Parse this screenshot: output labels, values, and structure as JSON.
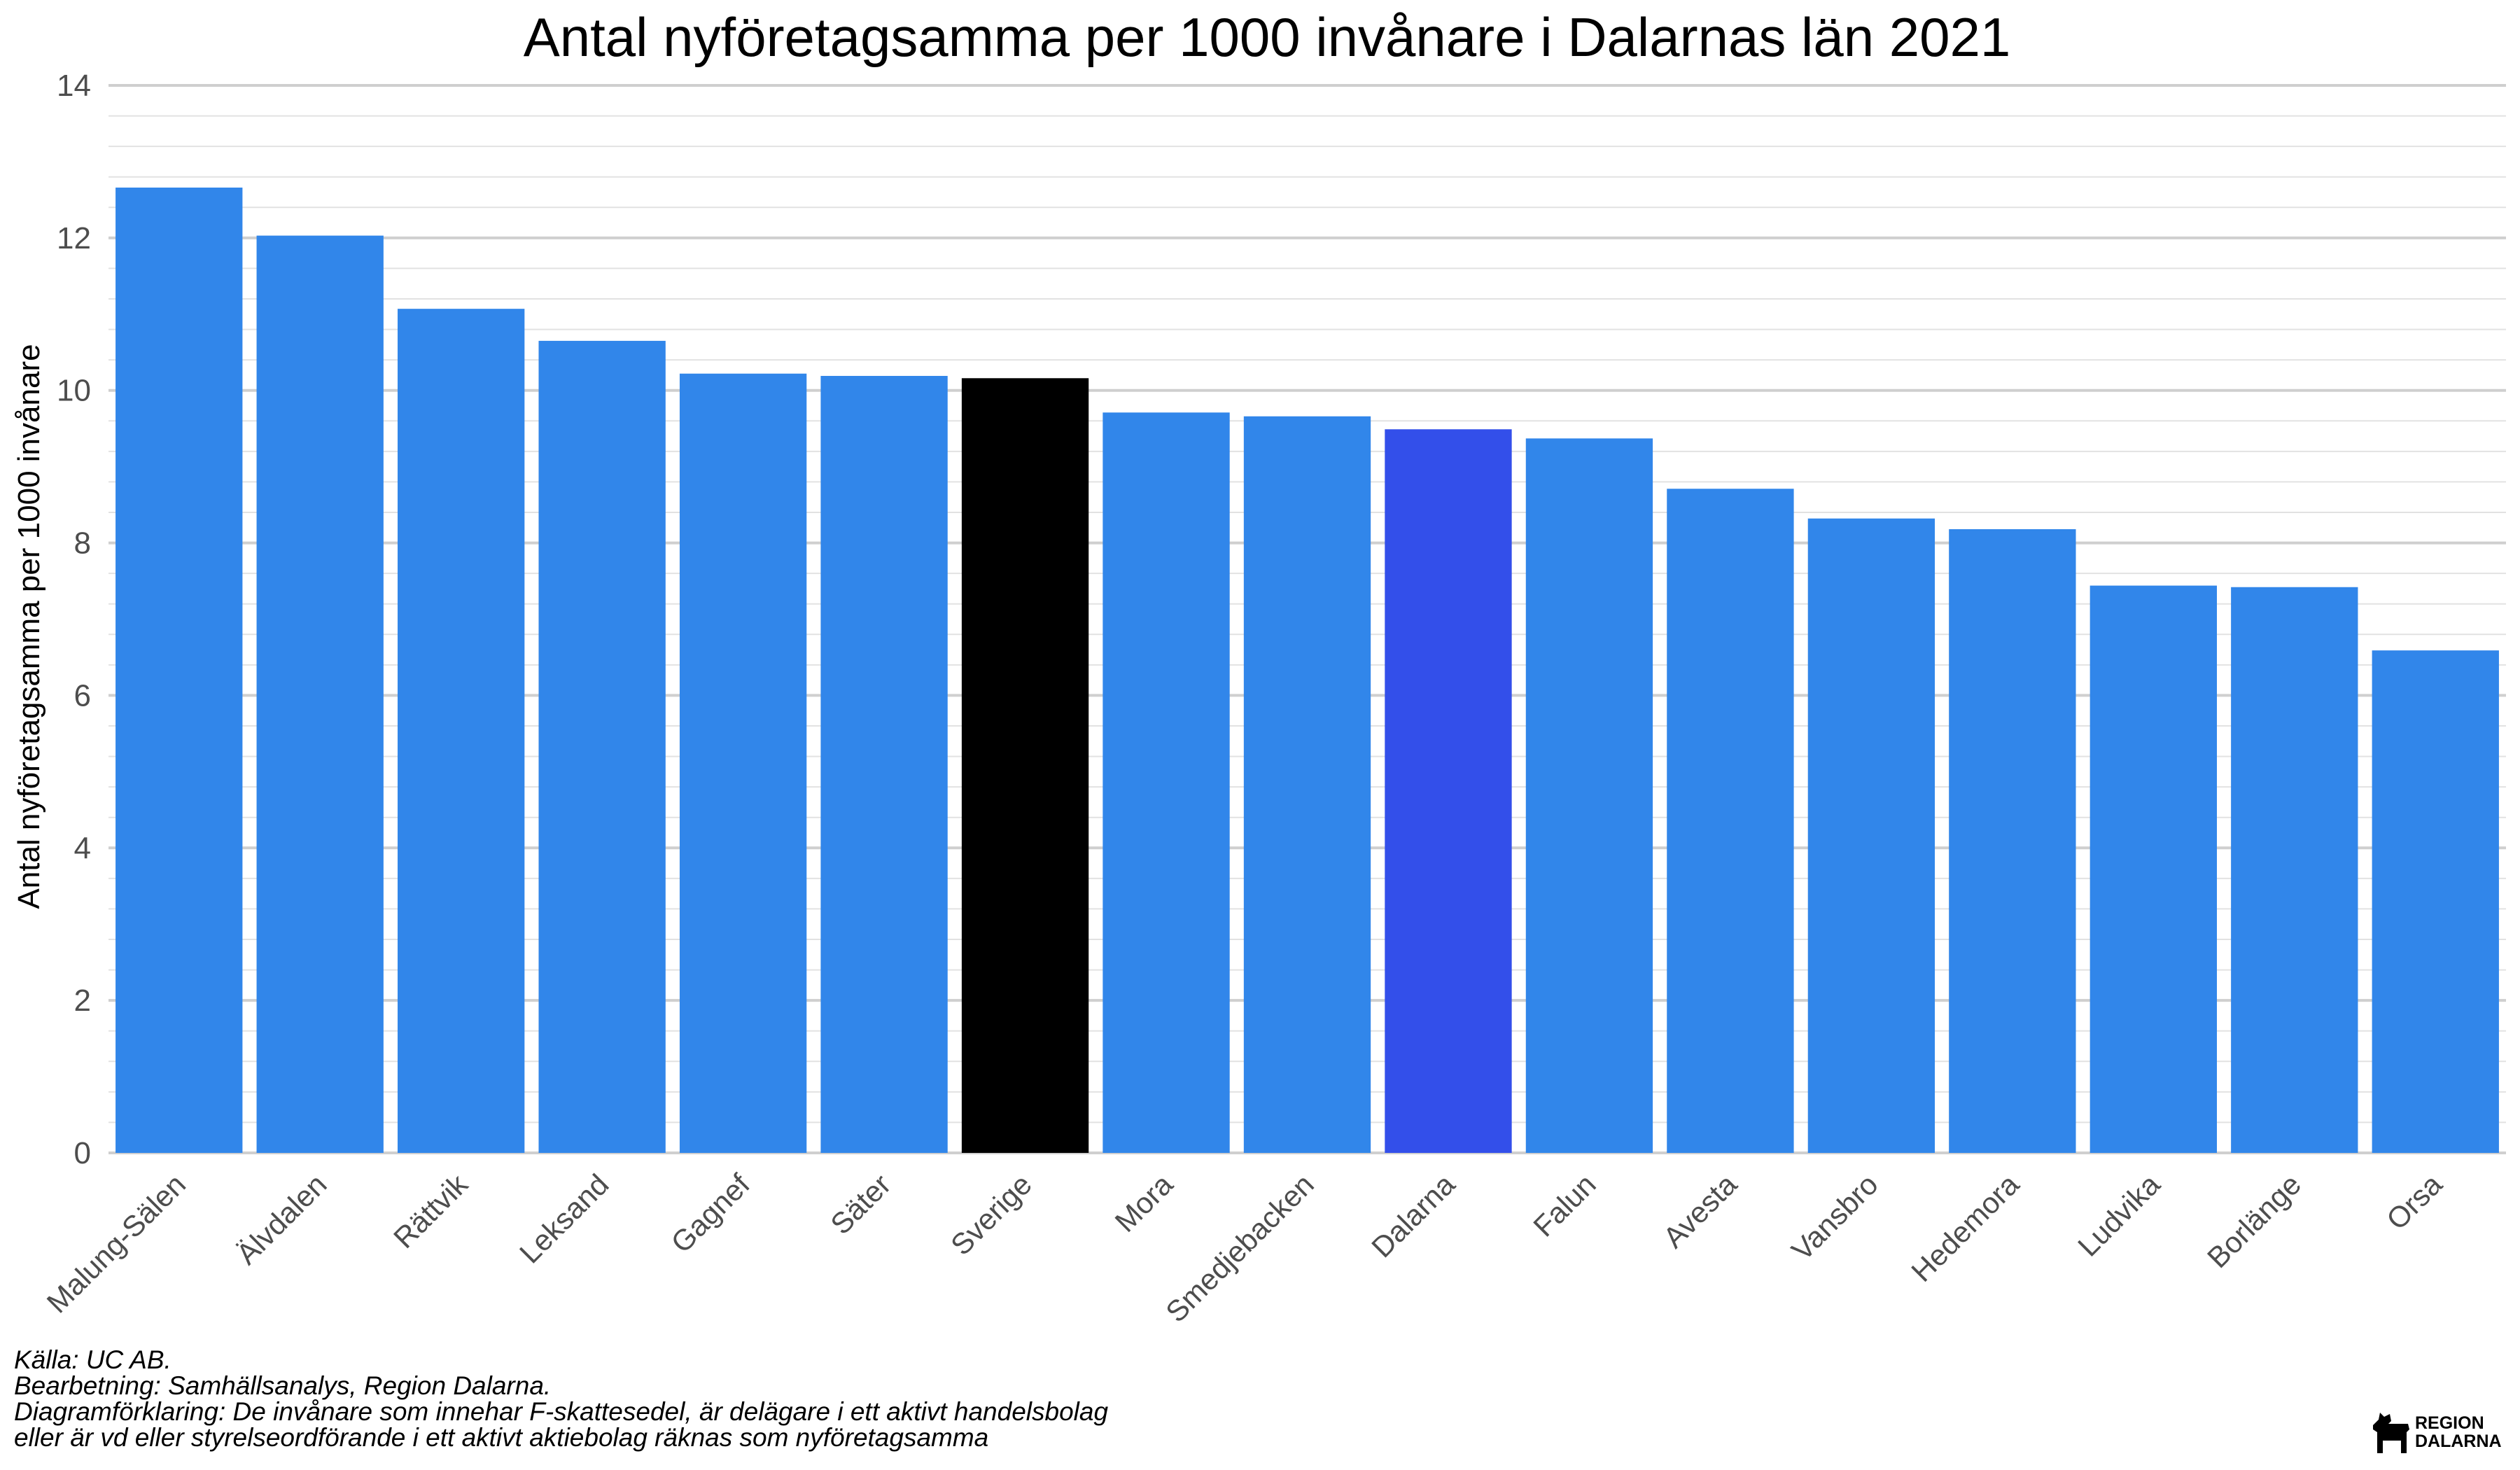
{
  "chart_data": {
    "type": "bar",
    "title": "Antal nyföretagsamma per 1000 invånare i Dalarnas län 2021",
    "xlabel": "",
    "ylabel": "Antal nyföretagsamma per 1000 invånare",
    "ylim": [
      0,
      14
    ],
    "yticks": [
      0,
      2,
      4,
      6,
      8,
      10,
      12,
      14
    ],
    "grid": true,
    "categories": [
      "Malung-Sälen",
      "Älvdalen",
      "Rättvik",
      "Leksand",
      "Gagnef",
      "Säter",
      "Sverige",
      "Mora",
      "Smedjebacken",
      "Dalarna",
      "Falun",
      "Avesta",
      "Vansbro",
      "Hedemora",
      "Ludvika",
      "Borlänge",
      "Orsa"
    ],
    "values": [
      12.66,
      12.03,
      11.07,
      10.65,
      10.22,
      10.19,
      10.16,
      9.71,
      9.66,
      9.49,
      9.37,
      8.71,
      8.32,
      8.18,
      7.44,
      7.42,
      6.59
    ],
    "colors": [
      "#3186EA",
      "#3186EA",
      "#3186EA",
      "#3186EA",
      "#3186EA",
      "#3186EA",
      "#000000",
      "#3186EA",
      "#3186EA",
      "#334FEA",
      "#3186EA",
      "#3186EA",
      "#3186EA",
      "#3186EA",
      "#3186EA",
      "#3186EA",
      "#3186EA"
    ]
  },
  "footer": {
    "source": "Källa: UC AB.",
    "processing": "Bearbetning: Samhällsanalys, Region Dalarna.",
    "explanation_1": "Diagramförklaring: De invånare som innehar F-skattesedel, är delägare i ett aktivt handelsbolag",
    "explanation_2": "eller är vd eller styrelseordförande i ett aktivt aktiebolag räknas som nyföretagsamma"
  },
  "logo": {
    "line1": "REGION",
    "line2": "DALARNA",
    "icon": "dala-horse-icon"
  }
}
